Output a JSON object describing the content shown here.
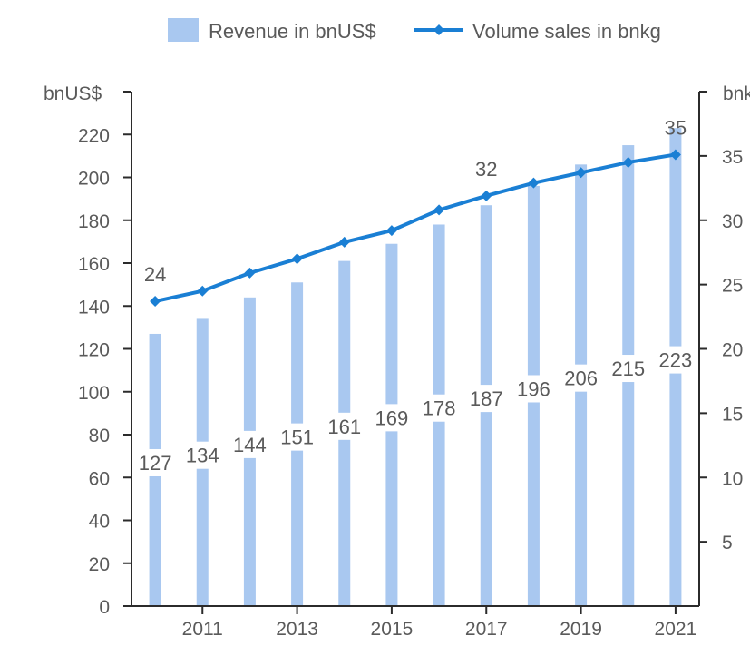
{
  "colors": {
    "bar": "#a9c8f0",
    "line": "#1a7fd4",
    "axis": "#2b2b2b",
    "text": "#5a5a5a"
  },
  "chart_data": {
    "type": "bar",
    "x": [
      2010,
      2011,
      2012,
      2013,
      2014,
      2015,
      2016,
      2017,
      2018,
      2019,
      2020,
      2021
    ],
    "x_tick_labels": [
      "2011",
      "2013",
      "2015",
      "2017",
      "2019",
      "2021"
    ],
    "legend": {
      "position": "top",
      "entries": [
        "Revenue in bnUS$",
        "Volume sales in bnkg"
      ]
    },
    "y_left": {
      "label": "bnUS$",
      "range": [
        0,
        240
      ],
      "ticks": [
        "0",
        "20",
        "40",
        "60",
        "80",
        "100",
        "120",
        "140",
        "160",
        "180",
        "200",
        "220"
      ]
    },
    "y_right": {
      "label": "bnkg",
      "range": [
        0,
        40
      ],
      "ticks": [
        "5",
        "10",
        "15",
        "20",
        "25",
        "30",
        "35"
      ]
    },
    "series": [
      {
        "name": "Revenue in bnUS$",
        "type": "bar",
        "axis": "left",
        "values": [
          127,
          134,
          144,
          151,
          161,
          169,
          178,
          187,
          196,
          206,
          215,
          223
        ],
        "labels": [
          "127",
          "134",
          "144",
          "151",
          "161",
          "169",
          "178",
          "187",
          "196",
          "206",
          "215",
          "223"
        ]
      },
      {
        "name": "Volume sales in bnkg",
        "type": "line",
        "axis": "right",
        "values": [
          23.7,
          24.5,
          25.9,
          27.0,
          28.3,
          29.2,
          30.8,
          31.9,
          32.9,
          33.7,
          34.5,
          35.1
        ],
        "point_labels": [
          {
            "index": 0,
            "text": "24"
          },
          {
            "index": 7,
            "text": "32"
          },
          {
            "index": 11,
            "text": "35"
          }
        ]
      }
    ],
    "grid": false
  }
}
